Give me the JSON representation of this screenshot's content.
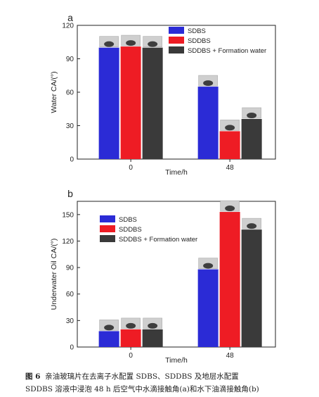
{
  "chart_data": [
    {
      "panel_label": "a",
      "type": "bar",
      "xlabel": "Time/h",
      "ylabel": "Water CA/(°)",
      "ylim": [
        0,
        120
      ],
      "yticks": [
        "0",
        "30",
        "60",
        "90",
        "120"
      ],
      "categories": [
        "0",
        "48"
      ],
      "series": [
        {
          "name": "SDBS",
          "color": "#2b2bd6",
          "values": [
            100,
            65
          ]
        },
        {
          "name": "SDDBS",
          "color": "#ee1c24",
          "values": [
            101,
            25
          ]
        },
        {
          "name": "SDDBS + Formation water",
          "color": "#3a3a3a",
          "values": [
            100,
            36
          ]
        }
      ],
      "legend_position": "top-right"
    },
    {
      "panel_label": "b",
      "type": "bar",
      "xlabel": "Time/h",
      "ylabel": "Underwater Oil CA/(°)",
      "ylim": [
        0,
        165
      ],
      "yticks": [
        "0",
        "30",
        "60",
        "90",
        "120",
        "150"
      ],
      "categories": [
        "0",
        "48"
      ],
      "series": [
        {
          "name": "SDBS",
          "color": "#2b2bd6",
          "values": [
            18,
            88
          ]
        },
        {
          "name": "SDDBS",
          "color": "#ee1c24",
          "values": [
            20,
            153
          ]
        },
        {
          "name": "SDDBS + Formation water",
          "color": "#3a3a3a",
          "values": [
            20,
            133
          ]
        }
      ],
      "legend_position": "top-left"
    }
  ],
  "caption": {
    "lead": "图 6",
    "line1": "亲油玻璃片在去离子水配置 SDBS、SDDBS 及地层水配置",
    "line2": "SDDBS 溶液中浸泡 48 h 后空气中水滴接触角(a)和水下油滴接触角(b)"
  }
}
